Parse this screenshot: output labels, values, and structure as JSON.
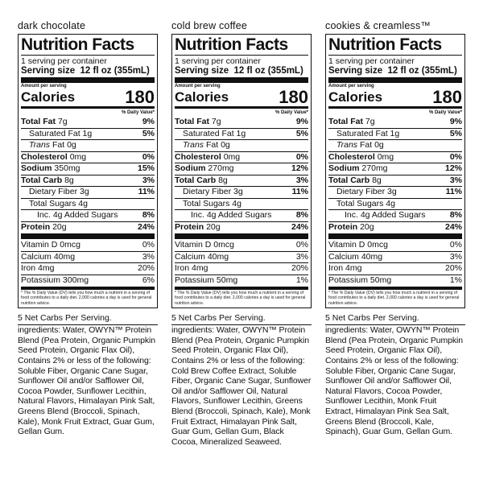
{
  "panels": [
    {
      "flavor": "dark chocolate",
      "title": "Nutrition Facts",
      "servings": "1 serving per container",
      "serving_size_label": "Serving size",
      "serving_size_value": "12 fl oz (355mL)",
      "amount_per_serving": "Amount per serving",
      "calories_label": "Calories",
      "calories_value": "180",
      "dv_header": "% Daily Value*",
      "nutrients": [
        {
          "name": "Total Fat",
          "amount": "7g",
          "pct": "9%"
        },
        {
          "name": "Saturated Fat",
          "amount": "1g",
          "pct": "5%"
        },
        {
          "name_italic": "Trans",
          "name": "Fat",
          "amount": "0g",
          "pct": ""
        },
        {
          "name": "Cholesterol",
          "amount": "0mg",
          "pct": "0%"
        },
        {
          "name": "Sodium",
          "amount": "350mg",
          "pct": "15%"
        },
        {
          "name": "Total Carb",
          "amount": "8g",
          "pct": "3%"
        },
        {
          "name": "Dietary Fiber",
          "amount": "3g",
          "pct": "11%"
        },
        {
          "name": "Total Sugars",
          "amount": "4g",
          "pct": ""
        },
        {
          "name": "Inc. 4g Added Sugars",
          "amount": "",
          "pct": "8%"
        },
        {
          "name": "Protein",
          "amount": "20g",
          "pct": "24%"
        }
      ],
      "vitamins": [
        {
          "name": "Vitamin D 0mcg",
          "pct": "0%"
        },
        {
          "name": "Calcium 40mg",
          "pct": "3%"
        },
        {
          "name": "Iron 4mg",
          "pct": "20%"
        },
        {
          "name": "Potassium 300mg",
          "pct": "6%"
        }
      ],
      "footnote": "* The % Daily Value (DV) tells you how much a nutrient in a serving of food contributes to a daily diet. 2,000 calories a day is used for general nutrition advice.",
      "net_carbs": "5 Net Carbs Per Serving.",
      "ingredients": "ingredients: Water, OWYN™ Protein Blend (Pea Protein, Organic Pumpkin Seed Protein, Organic Flax Oil), Contains 2% or less of the following: Soluble Fiber, Organic Cane Sugar, Sunflower Oil and/or Safflower Oil, Cocoa Powder, Sunflower Lecithin, Natural Flavors, Himalayan Pink Salt, Greens Blend (Broccoli, Spinach, Kale), Monk Fruit Extract, Guar Gum, Gellan Gum."
    },
    {
      "flavor": "cold brew coffee",
      "title": "Nutrition Facts",
      "servings": "1 serving per container",
      "serving_size_label": "Serving size",
      "serving_size_value": "12 fl oz (355mL)",
      "amount_per_serving": "Amount per serving",
      "calories_label": "Calories",
      "calories_value": "180",
      "dv_header": "% Daily Value*",
      "nutrients": [
        {
          "name": "Total Fat",
          "amount": "7g",
          "pct": "9%"
        },
        {
          "name": "Saturated Fat",
          "amount": "1g",
          "pct": "5%"
        },
        {
          "name_italic": "Trans",
          "name": "Fat",
          "amount": "0g",
          "pct": ""
        },
        {
          "name": "Cholesterol",
          "amount": "0mg",
          "pct": "0%"
        },
        {
          "name": "Sodium",
          "amount": "270mg",
          "pct": "12%"
        },
        {
          "name": "Total Carb",
          "amount": "8g",
          "pct": "3%"
        },
        {
          "name": "Dietary Fiber",
          "amount": "3g",
          "pct": "11%"
        },
        {
          "name": "Total Sugars",
          "amount": "4g",
          "pct": ""
        },
        {
          "name": "Inc. 4g Added Sugars",
          "amount": "",
          "pct": "8%"
        },
        {
          "name": "Protein",
          "amount": "20g",
          "pct": "24%"
        }
      ],
      "vitamins": [
        {
          "name": "Vitamin D 0mcg",
          "pct": "0%"
        },
        {
          "name": "Calcium 40mg",
          "pct": "3%"
        },
        {
          "name": "Iron 4mg",
          "pct": "20%"
        },
        {
          "name": "Potassium 50mg",
          "pct": "1%"
        }
      ],
      "footnote": "* The % Daily Value (DV) tells you how much a nutrient in a serving of food contributes to a daily diet. 2,000 calories a day is used for general nutrition advice.",
      "net_carbs": "5 Net Carbs Per Serving.",
      "ingredients": "ingredients: Water, OWYN™ Protein Blend (Pea Protein, Organic Pumpkin Seed Protein, Organic Flax Oil), Contains 2% or less of the following: Cold Brew Coffee Extract, Soluble Fiber, Organic Cane Sugar, Sunflower Oil and/or Safflower Oil, Natural Flavors, Sunflower Lecithin, Greens Blend (Broccoli, Spinach, Kale), Monk Fruit Extract, Himalayan Pink Salt, Guar Gum, Gellan Gum, Black Cocoa, Mineralized Seaweed."
    },
    {
      "flavor": "cookies & creamless™",
      "title": "Nutrition Facts",
      "servings": "1 serving per container",
      "serving_size_label": "Serving size",
      "serving_size_value": "12 fl oz (355mL)",
      "amount_per_serving": "Amount per serving",
      "calories_label": "Calories",
      "calories_value": "180",
      "dv_header": "% Daily Value*",
      "nutrients": [
        {
          "name": "Total Fat",
          "amount": "7g",
          "pct": "9%"
        },
        {
          "name": "Saturated Fat",
          "amount": "1g",
          "pct": "5%"
        },
        {
          "name_italic": "Trans",
          "name": "Fat",
          "amount": "0g",
          "pct": ""
        },
        {
          "name": "Cholesterol",
          "amount": "0mg",
          "pct": "0%"
        },
        {
          "name": "Sodium",
          "amount": "270mg",
          "pct": "12%"
        },
        {
          "name": "Total Carb",
          "amount": "8g",
          "pct": "3%"
        },
        {
          "name": "Dietary Fiber",
          "amount": "3g",
          "pct": "11%"
        },
        {
          "name": "Total Sugars",
          "amount": "4g",
          "pct": ""
        },
        {
          "name": "Inc. 4g Added Sugars",
          "amount": "",
          "pct": "8%"
        },
        {
          "name": "Protein",
          "amount": "20g",
          "pct": "24%"
        }
      ],
      "vitamins": [
        {
          "name": "Vitamin D 0mcg",
          "pct": "0%"
        },
        {
          "name": "Calcium 40mg",
          "pct": "3%"
        },
        {
          "name": "Iron 4mg",
          "pct": "20%"
        },
        {
          "name": "Potassium 50mg",
          "pct": "1%"
        }
      ],
      "footnote": "* The % Daily Value (DV) tells you how much a nutrient in a serving of food contributes to a daily diet. 2,000 calories a day is used for general nutrition advice.",
      "net_carbs": "5 Net Carbs Per Serving.",
      "ingredients": "ingredients: Water, OWYN™ Protein Blend (Pea Protein, Organic Pumpkin Seed Protein, Organic Flax Oil), Contains 2% or less of the following: Soluble Fiber, Organic Cane Sugar, Sunflower Oil and/or Safflower Oil, Natural Flavors, Cocoa Powder, Sunflower Lecithin, Monk Fruit Extract, Himalayan Pink Sea Salt, Greens Blend (Broccoli, Kale, Spinach), Guar Gum, Gellan Gum."
    }
  ]
}
